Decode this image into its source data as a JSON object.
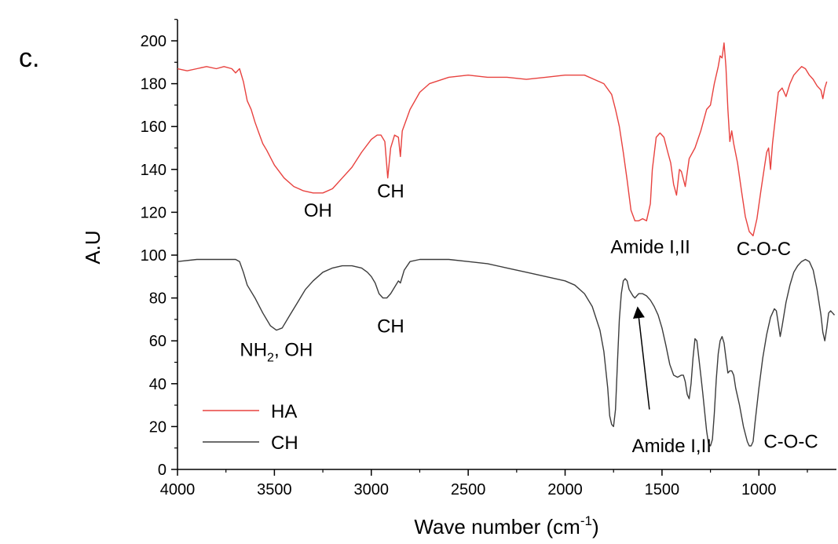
{
  "panel_label": "c.",
  "chart_data": {
    "type": "line",
    "xlabel": "Wave number (cm",
    "xlabel_sup": "-1",
    "xlabel_tail": ")",
    "ylabel": "A.U",
    "xlim": [
      4000,
      600
    ],
    "ylim": [
      0,
      210
    ],
    "x_reversed": true,
    "grid": false,
    "legend_position": "bottom-left",
    "x_ticks": [
      4000,
      3500,
      3000,
      2500,
      2000,
      1500,
      1000
    ],
    "y_ticks": [
      0,
      20,
      40,
      60,
      80,
      100,
      120,
      140,
      160,
      180,
      200
    ],
    "series": [
      {
        "name": "HA",
        "color": "#e8423f",
        "points": [
          [
            4000,
            187
          ],
          [
            3950,
            186
          ],
          [
            3900,
            187
          ],
          [
            3850,
            188
          ],
          [
            3800,
            187
          ],
          [
            3760,
            188
          ],
          [
            3720,
            187
          ],
          [
            3700,
            185
          ],
          [
            3680,
            187
          ],
          [
            3660,
            181
          ],
          [
            3640,
            172
          ],
          [
            3620,
            168
          ],
          [
            3600,
            162
          ],
          [
            3580,
            157
          ],
          [
            3560,
            152
          ],
          [
            3540,
            149
          ],
          [
            3500,
            142
          ],
          [
            3450,
            136
          ],
          [
            3400,
            132
          ],
          [
            3350,
            130
          ],
          [
            3300,
            129
          ],
          [
            3250,
            129
          ],
          [
            3200,
            131
          ],
          [
            3150,
            136
          ],
          [
            3100,
            141
          ],
          [
            3050,
            148
          ],
          [
            3000,
            154
          ],
          [
            2970,
            156
          ],
          [
            2950,
            156
          ],
          [
            2930,
            153
          ],
          [
            2915,
            136
          ],
          [
            2900,
            150
          ],
          [
            2880,
            156
          ],
          [
            2860,
            155
          ],
          [
            2850,
            146
          ],
          [
            2840,
            158
          ],
          [
            2800,
            168
          ],
          [
            2750,
            176
          ],
          [
            2700,
            180
          ],
          [
            2600,
            183
          ],
          [
            2500,
            184
          ],
          [
            2400,
            183
          ],
          [
            2300,
            183
          ],
          [
            2200,
            182
          ],
          [
            2100,
            183
          ],
          [
            2000,
            184
          ],
          [
            1900,
            184
          ],
          [
            1850,
            182
          ],
          [
            1800,
            180
          ],
          [
            1760,
            175
          ],
          [
            1740,
            168
          ],
          [
            1720,
            160
          ],
          [
            1700,
            148
          ],
          [
            1680,
            135
          ],
          [
            1660,
            121
          ],
          [
            1640,
            116
          ],
          [
            1620,
            116
          ],
          [
            1600,
            117
          ],
          [
            1580,
            116
          ],
          [
            1560,
            124
          ],
          [
            1550,
            140
          ],
          [
            1530,
            155
          ],
          [
            1510,
            157
          ],
          [
            1490,
            155
          ],
          [
            1470,
            148
          ],
          [
            1455,
            143
          ],
          [
            1440,
            133
          ],
          [
            1425,
            128
          ],
          [
            1410,
            140
          ],
          [
            1400,
            139
          ],
          [
            1380,
            132
          ],
          [
            1360,
            145
          ],
          [
            1330,
            150
          ],
          [
            1300,
            158
          ],
          [
            1270,
            168
          ],
          [
            1250,
            170
          ],
          [
            1230,
            180
          ],
          [
            1210,
            188
          ],
          [
            1200,
            193
          ],
          [
            1190,
            192
          ],
          [
            1180,
            199
          ],
          [
            1170,
            188
          ],
          [
            1160,
            168
          ],
          [
            1150,
            153
          ],
          [
            1140,
            158
          ],
          [
            1130,
            152
          ],
          [
            1110,
            143
          ],
          [
            1090,
            130
          ],
          [
            1070,
            118
          ],
          [
            1050,
            111
          ],
          [
            1030,
            109
          ],
          [
            1010,
            117
          ],
          [
            990,
            130
          ],
          [
            970,
            142
          ],
          [
            960,
            148
          ],
          [
            950,
            150
          ],
          [
            940,
            140
          ],
          [
            930,
            152
          ],
          [
            910,
            168
          ],
          [
            900,
            176
          ],
          [
            880,
            178
          ],
          [
            860,
            174
          ],
          [
            840,
            180
          ],
          [
            820,
            184
          ],
          [
            800,
            186
          ],
          [
            780,
            188
          ],
          [
            760,
            187
          ],
          [
            740,
            184
          ],
          [
            720,
            182
          ],
          [
            700,
            179
          ],
          [
            680,
            177
          ],
          [
            670,
            173
          ],
          [
            660,
            178
          ],
          [
            650,
            181
          ]
        ]
      },
      {
        "name": "CH",
        "color": "#3c3c3c",
        "points": [
          [
            4000,
            97
          ],
          [
            3900,
            98
          ],
          [
            3800,
            98
          ],
          [
            3720,
            98
          ],
          [
            3700,
            98
          ],
          [
            3680,
            97
          ],
          [
            3660,
            92
          ],
          [
            3640,
            86
          ],
          [
            3600,
            80
          ],
          [
            3560,
            73
          ],
          [
            3520,
            67
          ],
          [
            3490,
            65
          ],
          [
            3460,
            66
          ],
          [
            3420,
            72
          ],
          [
            3380,
            78
          ],
          [
            3340,
            84
          ],
          [
            3300,
            88
          ],
          [
            3250,
            92
          ],
          [
            3200,
            94
          ],
          [
            3150,
            95
          ],
          [
            3100,
            95
          ],
          [
            3050,
            94
          ],
          [
            3020,
            92
          ],
          [
            3000,
            90
          ],
          [
            2980,
            87
          ],
          [
            2960,
            82
          ],
          [
            2940,
            80
          ],
          [
            2920,
            80
          ],
          [
            2900,
            82
          ],
          [
            2880,
            85
          ],
          [
            2860,
            88
          ],
          [
            2850,
            87
          ],
          [
            2830,
            93
          ],
          [
            2800,
            97
          ],
          [
            2750,
            98
          ],
          [
            2700,
            98
          ],
          [
            2600,
            98
          ],
          [
            2500,
            97
          ],
          [
            2400,
            96
          ],
          [
            2300,
            94
          ],
          [
            2200,
            92
          ],
          [
            2100,
            90
          ],
          [
            2000,
            88
          ],
          [
            1950,
            86
          ],
          [
            1900,
            82
          ],
          [
            1860,
            76
          ],
          [
            1820,
            65
          ],
          [
            1800,
            55
          ],
          [
            1780,
            38
          ],
          [
            1770,
            25
          ],
          [
            1760,
            21
          ],
          [
            1750,
            20
          ],
          [
            1740,
            28
          ],
          [
            1730,
            50
          ],
          [
            1720,
            70
          ],
          [
            1710,
            82
          ],
          [
            1700,
            88
          ],
          [
            1690,
            89
          ],
          [
            1680,
            88
          ],
          [
            1670,
            84
          ],
          [
            1650,
            81
          ],
          [
            1640,
            80
          ],
          [
            1630,
            81
          ],
          [
            1620,
            82
          ],
          [
            1600,
            82
          ],
          [
            1580,
            81
          ],
          [
            1560,
            79
          ],
          [
            1540,
            76
          ],
          [
            1520,
            72
          ],
          [
            1500,
            66
          ],
          [
            1480,
            58
          ],
          [
            1460,
            49
          ],
          [
            1440,
            44
          ],
          [
            1420,
            43
          ],
          [
            1400,
            44
          ],
          [
            1390,
            44
          ],
          [
            1380,
            41
          ],
          [
            1370,
            35
          ],
          [
            1360,
            33
          ],
          [
            1350,
            40
          ],
          [
            1340,
            52
          ],
          [
            1330,
            61
          ],
          [
            1320,
            60
          ],
          [
            1310,
            52
          ],
          [
            1300,
            44
          ],
          [
            1290,
            36
          ],
          [
            1280,
            27
          ],
          [
            1270,
            18
          ],
          [
            1260,
            12
          ],
          [
            1250,
            11
          ],
          [
            1240,
            14
          ],
          [
            1230,
            26
          ],
          [
            1220,
            42
          ],
          [
            1210,
            54
          ],
          [
            1200,
            60
          ],
          [
            1190,
            62
          ],
          [
            1180,
            59
          ],
          [
            1170,
            52
          ],
          [
            1160,
            45
          ],
          [
            1150,
            46
          ],
          [
            1140,
            46
          ],
          [
            1130,
            44
          ],
          [
            1120,
            38
          ],
          [
            1100,
            30
          ],
          [
            1080,
            20
          ],
          [
            1060,
            13
          ],
          [
            1050,
            11
          ],
          [
            1040,
            11
          ],
          [
            1030,
            13
          ],
          [
            1020,
            22
          ],
          [
            1000,
            38
          ],
          [
            980,
            52
          ],
          [
            960,
            63
          ],
          [
            940,
            71
          ],
          [
            920,
            75
          ],
          [
            910,
            74
          ],
          [
            900,
            68
          ],
          [
            890,
            62
          ],
          [
            880,
            67
          ],
          [
            860,
            78
          ],
          [
            840,
            86
          ],
          [
            820,
            92
          ],
          [
            800,
            95
          ],
          [
            780,
            97
          ],
          [
            760,
            98
          ],
          [
            740,
            97
          ],
          [
            720,
            93
          ],
          [
            700,
            84
          ],
          [
            680,
            72
          ],
          [
            670,
            64
          ],
          [
            660,
            60
          ],
          [
            650,
            66
          ],
          [
            640,
            73
          ],
          [
            630,
            74
          ],
          [
            620,
            73
          ],
          [
            610,
            72
          ]
        ]
      }
    ],
    "annotations": [
      {
        "text": "OH",
        "x": 3275,
        "y": 118,
        "anchor": "middle"
      },
      {
        "text": "CH",
        "x": 2900,
        "y": 127,
        "anchor": "middle"
      },
      {
        "text": "Amide I,II",
        "x": 1560,
        "y": 101,
        "anchor": "middle"
      },
      {
        "text": "C-O-C",
        "x": 975,
        "y": 100,
        "anchor": "middle"
      },
      {
        "text": "CH",
        "x": 2900,
        "y": 64,
        "anchor": "middle"
      },
      {
        "text": "Amide I,II",
        "x": 1450,
        "y": 8,
        "anchor": "middle"
      },
      {
        "text": "C-O-C",
        "x": 835,
        "y": 10,
        "anchor": "middle"
      }
    ],
    "annotation_nh2": {
      "main": "NH",
      "sub": "2",
      "rest": ", OH",
      "x": 3490,
      "y": 53
    },
    "arrow": {
      "from": [
        1565,
        28
      ],
      "to": [
        1625,
        75
      ]
    }
  }
}
